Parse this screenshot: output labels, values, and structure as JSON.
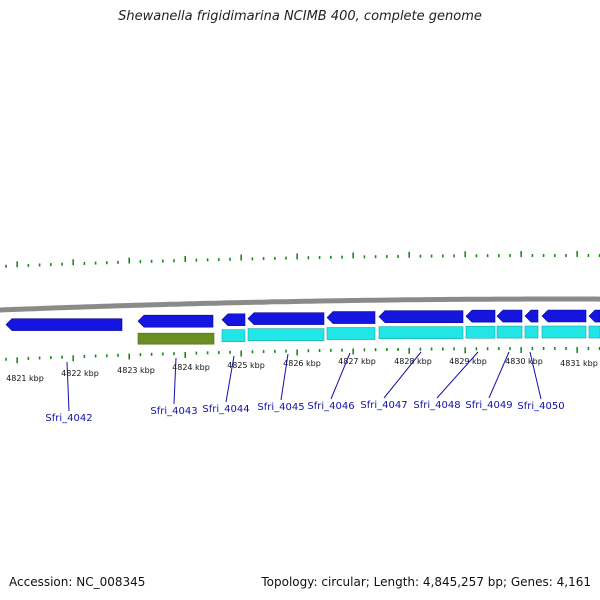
{
  "title": "Shewanella frigidimarina NCIMB 400, complete genome",
  "footer": {
    "accession": "Accession: NC_008345",
    "info": "Topology: circular; Length: 4,845,257 bp; Genes: 4,161"
  },
  "colors": {
    "backbone": "#8a8a8a",
    "forward_gene": "#1515e0",
    "reverse_gene": "#22e6e6",
    "pseudo_gene": "#6b8e23",
    "tick": "#1a8a1a",
    "gene_label": "#1111aa"
  },
  "tick_labels": [
    "4821 kbp",
    "4822 kbp",
    "4823 kbp",
    "4824 kbp",
    "4825 kbp",
    "4826 kbp",
    "4827 kbp",
    "4828 kbp",
    "4829 kbp",
    "4830 kbp",
    "4831 kbp"
  ],
  "genes": [
    {
      "label": "Sfri_4042"
    },
    {
      "label": "Sfri_4043"
    },
    {
      "label": "Sfri_4044"
    },
    {
      "label": "Sfri_4045"
    },
    {
      "label": "Sfri_4046"
    },
    {
      "label": "Sfri_4047"
    },
    {
      "label": "Sfri_4048"
    },
    {
      "label": "Sfri_4049"
    },
    {
      "label": "Sfri_4050"
    }
  ]
}
